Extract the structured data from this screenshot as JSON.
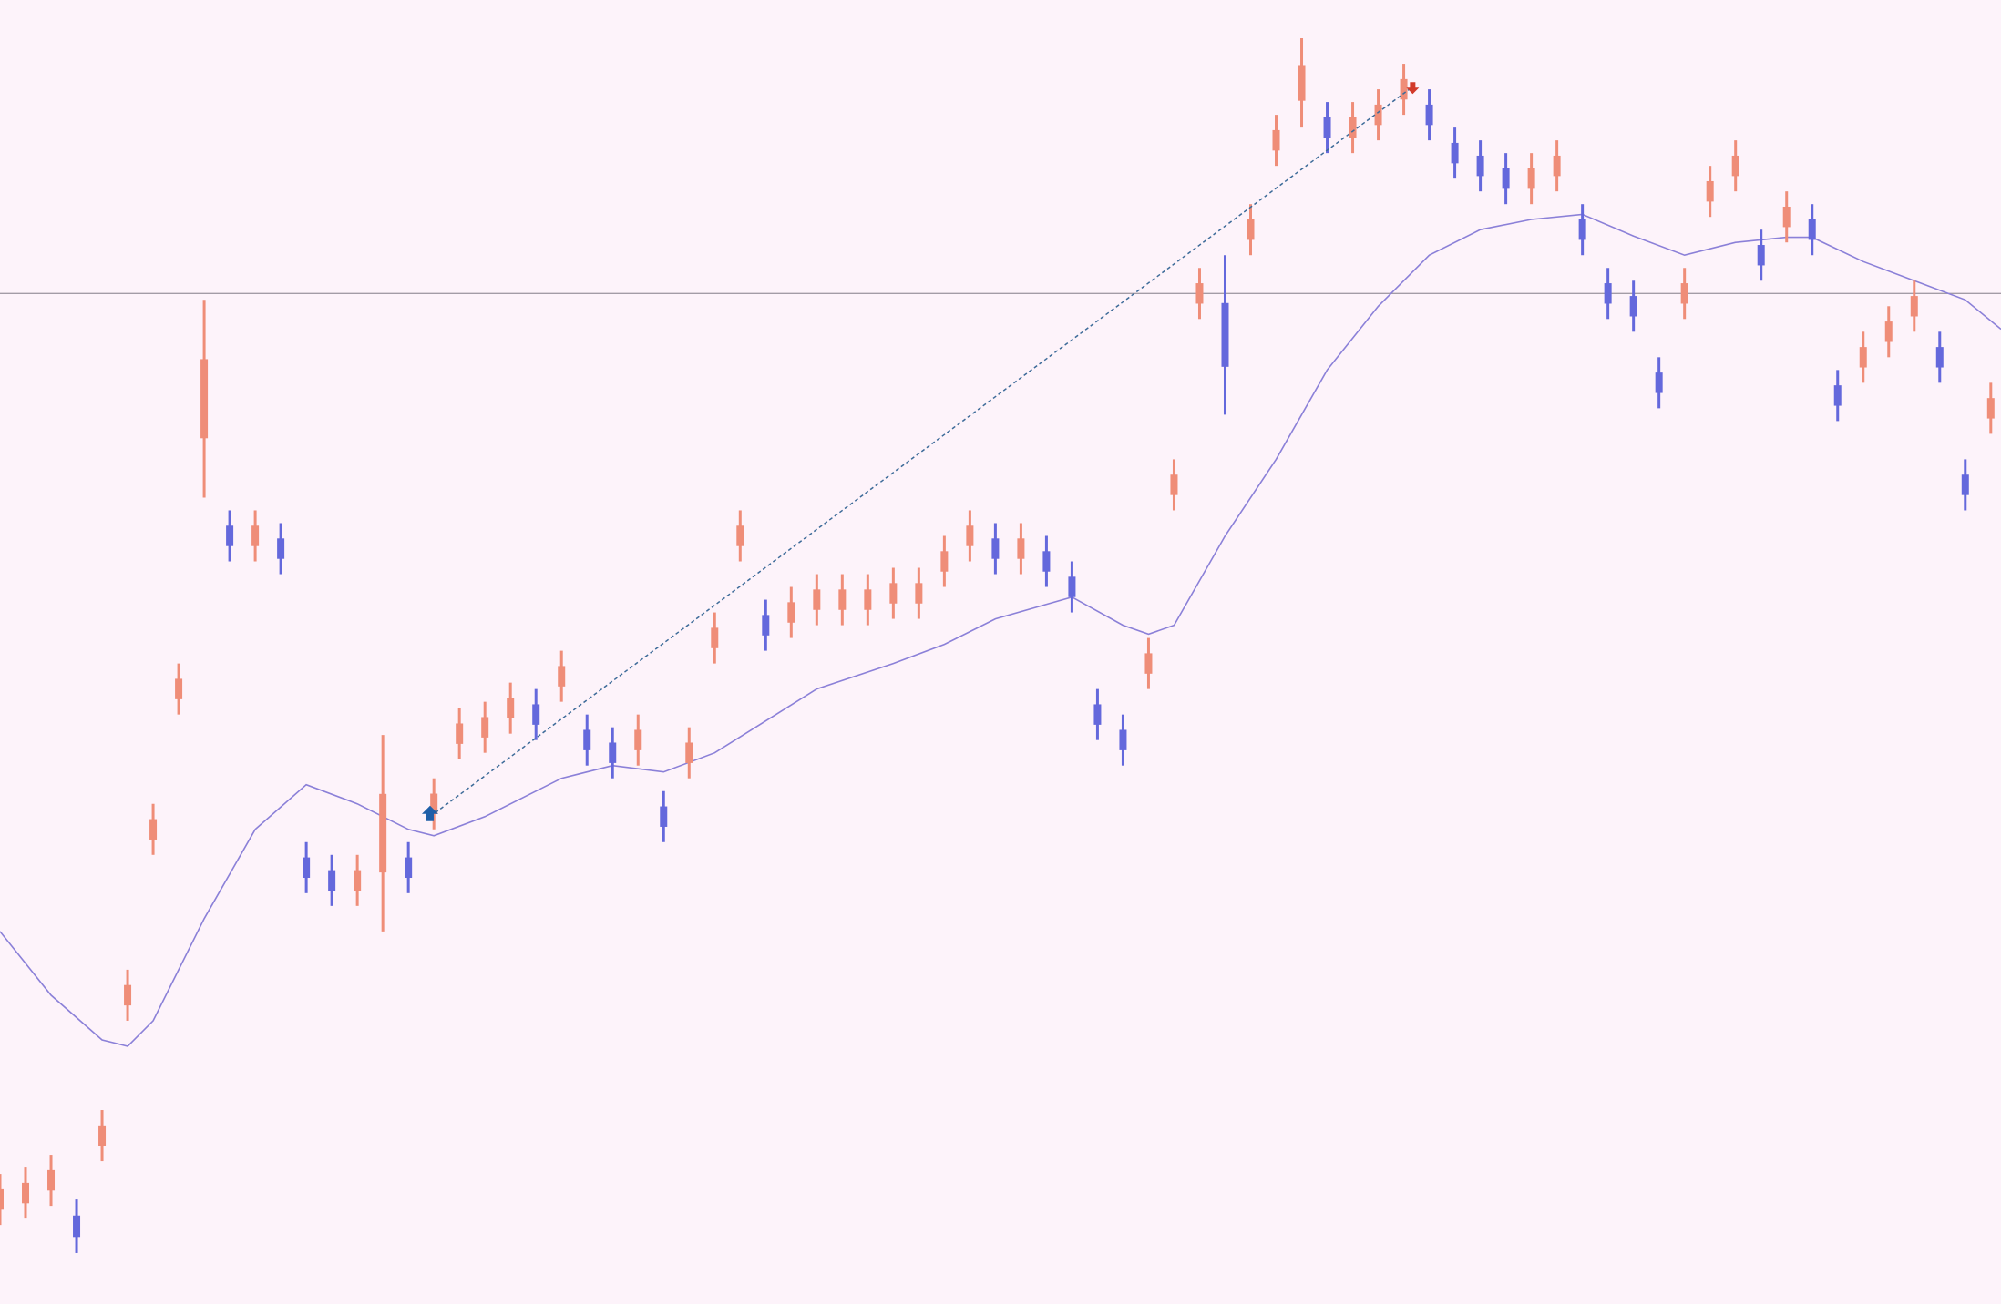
{
  "chart_data": {
    "type": "price",
    "xlim": [
      0,
      1568
    ],
    "ylim": [
      0,
      1022
    ],
    "bars": {
      "x": [
        0,
        20,
        40,
        60,
        80,
        100,
        120,
        140,
        160,
        180,
        200,
        220,
        240,
        260,
        280,
        300,
        320,
        340,
        360,
        380,
        400,
        420,
        440,
        460,
        480,
        500,
        520,
        540,
        560,
        580,
        600,
        620,
        640,
        660,
        680,
        700,
        720,
        740,
        760,
        780,
        800,
        820,
        840,
        860,
        880,
        900,
        920,
        940,
        960,
        980,
        1000,
        1020,
        1040,
        1060,
        1080,
        1100,
        1120,
        1140,
        1160,
        1180,
        1200,
        1220,
        1240,
        1260,
        1280,
        1300,
        1320,
        1340,
        1360,
        1380,
        1400,
        1420,
        1440,
        1460,
        1480,
        1500,
        1520,
        1540,
        1560
      ],
      "high": [
        102,
        107,
        117,
        82,
        152,
        262,
        392,
        502,
        787,
        622,
        622,
        612,
        362,
        352,
        352,
        446,
        362,
        412,
        467,
        472,
        487,
        482,
        512,
        462,
        452,
        462,
        402,
        452,
        542,
        622,
        552,
        562,
        572,
        572,
        572,
        577,
        577,
        602,
        622,
        612,
        612,
        602,
        582,
        482,
        462,
        522,
        662,
        812,
        822,
        862,
        932,
        992,
        942,
        942,
        952,
        972,
        952,
        922,
        912,
        902,
        902,
        912,
        862,
        812,
        802,
        742,
        812,
        892,
        912,
        842,
        872,
        862,
        732,
        762,
        782,
        802,
        762,
        662,
        722
      ],
      "low": [
        62,
        67,
        77,
        40,
        112,
        222,
        352,
        462,
        632,
        582,
        582,
        572,
        322,
        312,
        312,
        292,
        322,
        372,
        427,
        432,
        447,
        442,
        472,
        422,
        412,
        422,
        362,
        412,
        502,
        582,
        512,
        522,
        532,
        532,
        532,
        537,
        537,
        562,
        582,
        572,
        572,
        562,
        542,
        442,
        422,
        482,
        622,
        772,
        697,
        822,
        892,
        922,
        902,
        902,
        912,
        932,
        912,
        882,
        872,
        862,
        862,
        872,
        822,
        772,
        762,
        702,
        772,
        852,
        872,
        802,
        832,
        822,
        692,
        722,
        742,
        762,
        722,
        622,
        682
      ],
      "colors": [
        "#ef8d78",
        "#6468dc"
      ]
    },
    "ma": {
      "color": "#8b80d8",
      "x": [
        0,
        40,
        80,
        100,
        120,
        160,
        200,
        240,
        280,
        320,
        340,
        380,
        440,
        480,
        520,
        560,
        600,
        640,
        700,
        740,
        780,
        840,
        880,
        900,
        920,
        960,
        1000,
        1040,
        1080,
        1120,
        1160,
        1200,
        1240,
        1280,
        1320,
        1360,
        1400,
        1420,
        1460,
        1500,
        1540,
        1568
      ],
      "values": [
        292,
        242,
        207,
        202,
        222,
        302,
        372,
        407,
        392,
        372,
        367,
        382,
        412,
        422,
        417,
        432,
        457,
        482,
        502,
        517,
        537,
        554,
        532,
        525,
        532,
        602,
        662,
        732,
        782,
        822,
        842,
        850,
        854,
        837,
        822,
        832,
        836,
        836,
        817,
        802,
        787,
        764
      ]
    },
    "level": {
      "value": 792,
      "color": "#a39ca6"
    },
    "trade": {
      "entry": {
        "x": 337,
        "y": 382,
        "color": "#1f5fa8"
      },
      "exit": {
        "x": 1107,
        "y": 954,
        "color": "#d23a2a"
      },
      "color": "#3d6b99"
    }
  }
}
